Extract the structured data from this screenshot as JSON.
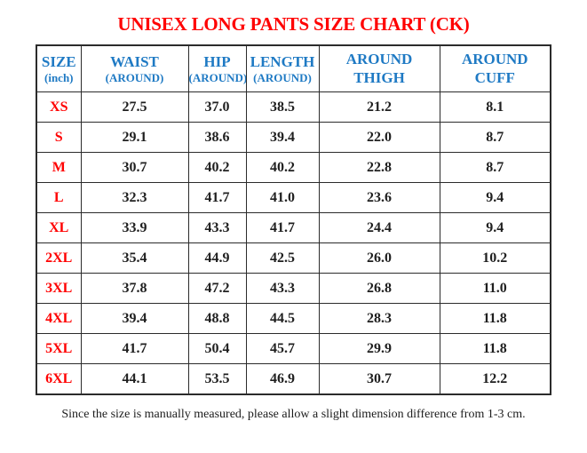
{
  "page": {
    "title": "UNISEX LONG PANTS SIZE CHART (CK)",
    "note": "Since the size is manually measured, please allow a slight dimension difference from 1-3 cm."
  },
  "colors": {
    "title_red": "#ff0000",
    "size_label_red": "#ff0000",
    "header_blue": "#1f7ac4",
    "value_black": "#1f1f1f",
    "border_gray": "#2b2b2b",
    "background": "#ffffff"
  },
  "size_chart": {
    "type": "table",
    "unit": "inch",
    "columns": [
      {
        "line1": "SIZE",
        "line2": "(inch)"
      },
      {
        "line1": "WAIST",
        "line2": "(AROUND)"
      },
      {
        "line1": "HIP",
        "line2": "(AROUND)"
      },
      {
        "line1": "LENGTH",
        "line2": "(AROUND)"
      },
      {
        "line1": "AROUND",
        "line2": "THIGH"
      },
      {
        "line1": "AROUND",
        "line2": "CUFF"
      }
    ],
    "rows": [
      {
        "size": "XS",
        "values": [
          "27.5",
          "37.0",
          "38.5",
          "21.2",
          "8.1"
        ]
      },
      {
        "size": "S",
        "values": [
          "29.1",
          "38.6",
          "39.4",
          "22.0",
          "8.7"
        ]
      },
      {
        "size": "M",
        "values": [
          "30.7",
          "40.2",
          "40.2",
          "22.8",
          "8.7"
        ]
      },
      {
        "size": "L",
        "values": [
          "32.3",
          "41.7",
          "41.0",
          "23.6",
          "9.4"
        ]
      },
      {
        "size": "XL",
        "values": [
          "33.9",
          "43.3",
          "41.7",
          "24.4",
          "9.4"
        ]
      },
      {
        "size": "2XL",
        "values": [
          "35.4",
          "44.9",
          "42.5",
          "26.0",
          "10.2"
        ]
      },
      {
        "size": "3XL",
        "values": [
          "37.8",
          "47.2",
          "43.3",
          "26.8",
          "11.0"
        ]
      },
      {
        "size": "4XL",
        "values": [
          "39.4",
          "48.8",
          "44.5",
          "28.3",
          "11.8"
        ]
      },
      {
        "size": "5XL",
        "values": [
          "41.7",
          "50.4",
          "45.7",
          "29.9",
          "11.8"
        ]
      },
      {
        "size": "6XL",
        "values": [
          "44.1",
          "53.5",
          "46.9",
          "30.7",
          "12.2"
        ]
      }
    ]
  }
}
